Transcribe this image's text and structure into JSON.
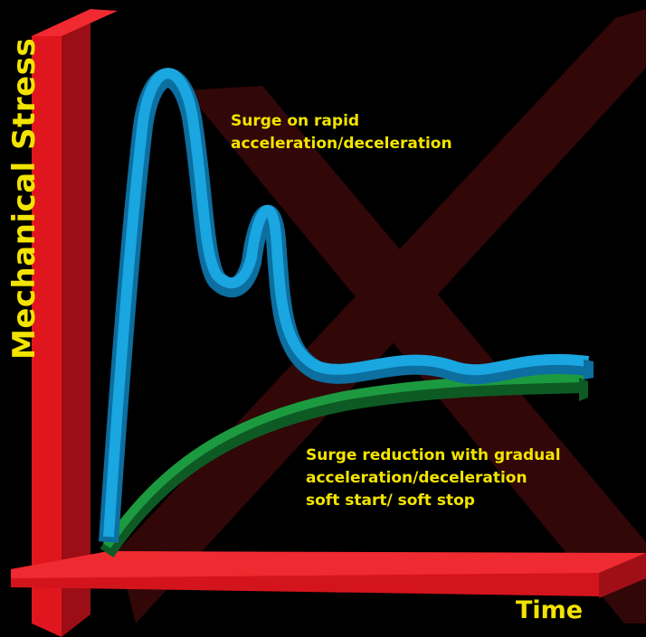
{
  "axes": {
    "y_label": "Mechanical Stress",
    "x_label": "Time"
  },
  "annotations": {
    "rapid": {
      "line1": "Surge on rapid",
      "line2": "acceleration/deceleration"
    },
    "gradual": {
      "line1": "Surge reduction with  gradual",
      "line2": "acceleration/deceleration",
      "line3": "soft start/ soft stop"
    }
  },
  "colors": {
    "axis_red": "#d8141e",
    "cross_overlay": "#5a0d0f",
    "rapid_curve_blue": "#1aa6e0",
    "gradual_curve_green": "#147a32",
    "text_yellow": "#f2e400"
  },
  "curves": [
    {
      "name": "rapid-acceleration-curve",
      "shape": "sharp peak, secondary peak, settling"
    },
    {
      "name": "gradual-acceleration-curve",
      "shape": "smooth rise to plateau"
    }
  ]
}
